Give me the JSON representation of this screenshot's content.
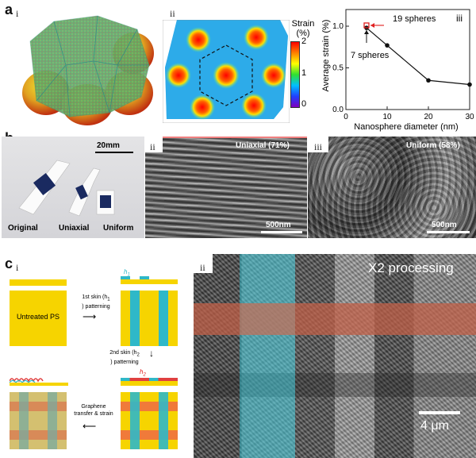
{
  "panel_labels": {
    "a": "a",
    "b": "b",
    "c": "c",
    "ai": "i",
    "aii": "ii",
    "aiii": "iii",
    "bi": "i",
    "bii": "ii",
    "biii": "iii",
    "ci": "i",
    "cii": "ii"
  },
  "strain_map": {
    "colorbar_title": "Strain",
    "colorbar_unit": "(%)",
    "ticks": [
      "2",
      "1",
      "0"
    ]
  },
  "chart_data": {
    "type": "line",
    "xlabel": "Nanosphere diameter (nm)",
    "ylabel": "Average strain (%)",
    "xlim": [
      0,
      30
    ],
    "ylim": [
      0,
      1.2
    ],
    "xticks": [
      "0",
      "10",
      "20",
      "30"
    ],
    "yticks": [
      "0.0",
      "0.5",
      "1.0"
    ],
    "series": [
      {
        "x": [
          5,
          10,
          20,
          30
        ],
        "y": [
          0.98,
          0.77,
          0.35,
          0.3
        ]
      }
    ],
    "highlight": {
      "x": 5,
      "y": 1.01,
      "color": "#e02020"
    },
    "annotations": [
      "19 spheres",
      "7 spheres"
    ]
  },
  "photo": {
    "scale_bar": "20mm",
    "samples": [
      "Original",
      "Uniaxial",
      "Uniform"
    ]
  },
  "sem_uniaxial": {
    "title": "Uniaxial (71%)",
    "scale_bar": "500nm"
  },
  "sem_uniform": {
    "title": "Uniform (58%)",
    "scale_bar": "500nm"
  },
  "schematic": {
    "untreated": "Untreated PS",
    "step1_line1": "1st skin (h",
    "step1_sub": "1",
    "step1_line2": ") patterning",
    "step2_line1": "2nd skin (h",
    "step2_sub": "2",
    "step2_line2": ") patterning",
    "step3_line1": "Graphene",
    "step3_line2": "transfer & strain",
    "h1": "h",
    "h1_sub": "1",
    "h2": "h",
    "h2_sub": "2"
  },
  "sem_grid": {
    "title": "X2 processing",
    "scale_bar": "4 μm"
  },
  "colors": {
    "yellow": "#f6d400",
    "cyan": "#2fb8c8",
    "orange": "#f07a3a",
    "red": "#e02020"
  }
}
